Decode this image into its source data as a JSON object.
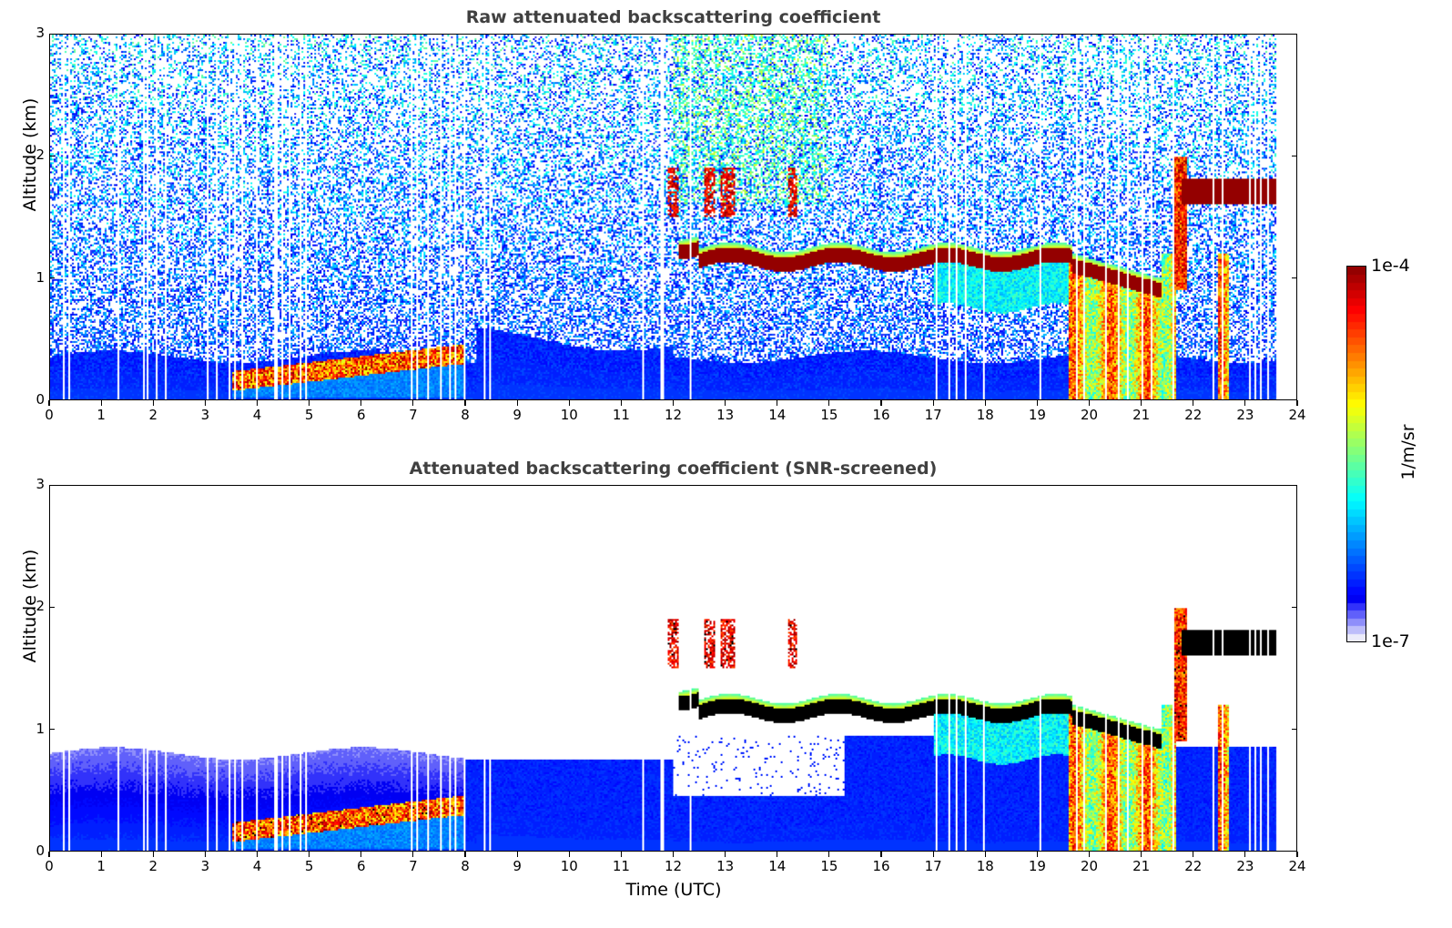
{
  "chart_data": [
    {
      "type": "heatmap",
      "title": "Raw attenuated backscattering coefficient",
      "xlabel": "",
      "ylabel": "Altitude (km)",
      "xlim": [
        0,
        24
      ],
      "ylim": [
        0,
        3
      ],
      "xticks": [
        "0",
        "1",
        "2",
        "3",
        "4",
        "5",
        "6",
        "7",
        "8",
        "9",
        "10",
        "11",
        "12",
        "13",
        "14",
        "15",
        "16",
        "17",
        "18",
        "19",
        "20",
        "21",
        "22",
        "23",
        "24"
      ],
      "yticks": [
        "0",
        "1",
        "2",
        "3"
      ],
      "data_end_time": 23.6,
      "features": [
        {
          "name": "boundary layer aerosol",
          "time_range": [
            0,
            24
          ],
          "top_altitude_km": 0.4
        },
        {
          "name": "low cloud layer",
          "time_range": [
            2.8,
            8.0
          ],
          "altitude_km": [
            0.15,
            0.4
          ]
        },
        {
          "name": "stratocumulus layer",
          "time_range": [
            12.0,
            20.0
          ],
          "altitude_km": [
            1.1,
            1.25
          ]
        },
        {
          "name": "elevated cloud patches",
          "time_range": [
            12.0,
            14.5
          ],
          "altitude_km": [
            1.5,
            1.9
          ]
        },
        {
          "name": "precipitation / thick cloud",
          "time_range": [
            19.6,
            23.0
          ],
          "altitude_km": [
            0,
            2.0
          ]
        },
        {
          "name": "upper cloud layer",
          "time_range": [
            21.8,
            23.6
          ],
          "altitude_km": [
            1.6,
            1.85
          ]
        }
      ]
    },
    {
      "type": "heatmap",
      "title": "Attenuated backscattering coefficient (SNR-screened)",
      "xlabel": "Time (UTC)",
      "ylabel": "Altitude (km)",
      "xlim": [
        0,
        24
      ],
      "ylim": [
        0,
        3
      ],
      "xticks": [
        "0",
        "1",
        "2",
        "3",
        "4",
        "5",
        "6",
        "7",
        "8",
        "9",
        "10",
        "11",
        "12",
        "13",
        "14",
        "15",
        "16",
        "17",
        "18",
        "19",
        "20",
        "21",
        "22",
        "23",
        "24"
      ],
      "yticks": [
        "0",
        "1",
        "2",
        "3"
      ],
      "data_end_time": 23.6
    }
  ],
  "colorbar": {
    "label": "1/m/sr",
    "max_label": "1e-4",
    "min_label": "1e-7",
    "scale": "log",
    "range": [
      1e-07,
      0.0001
    ],
    "colormap": "jet"
  }
}
